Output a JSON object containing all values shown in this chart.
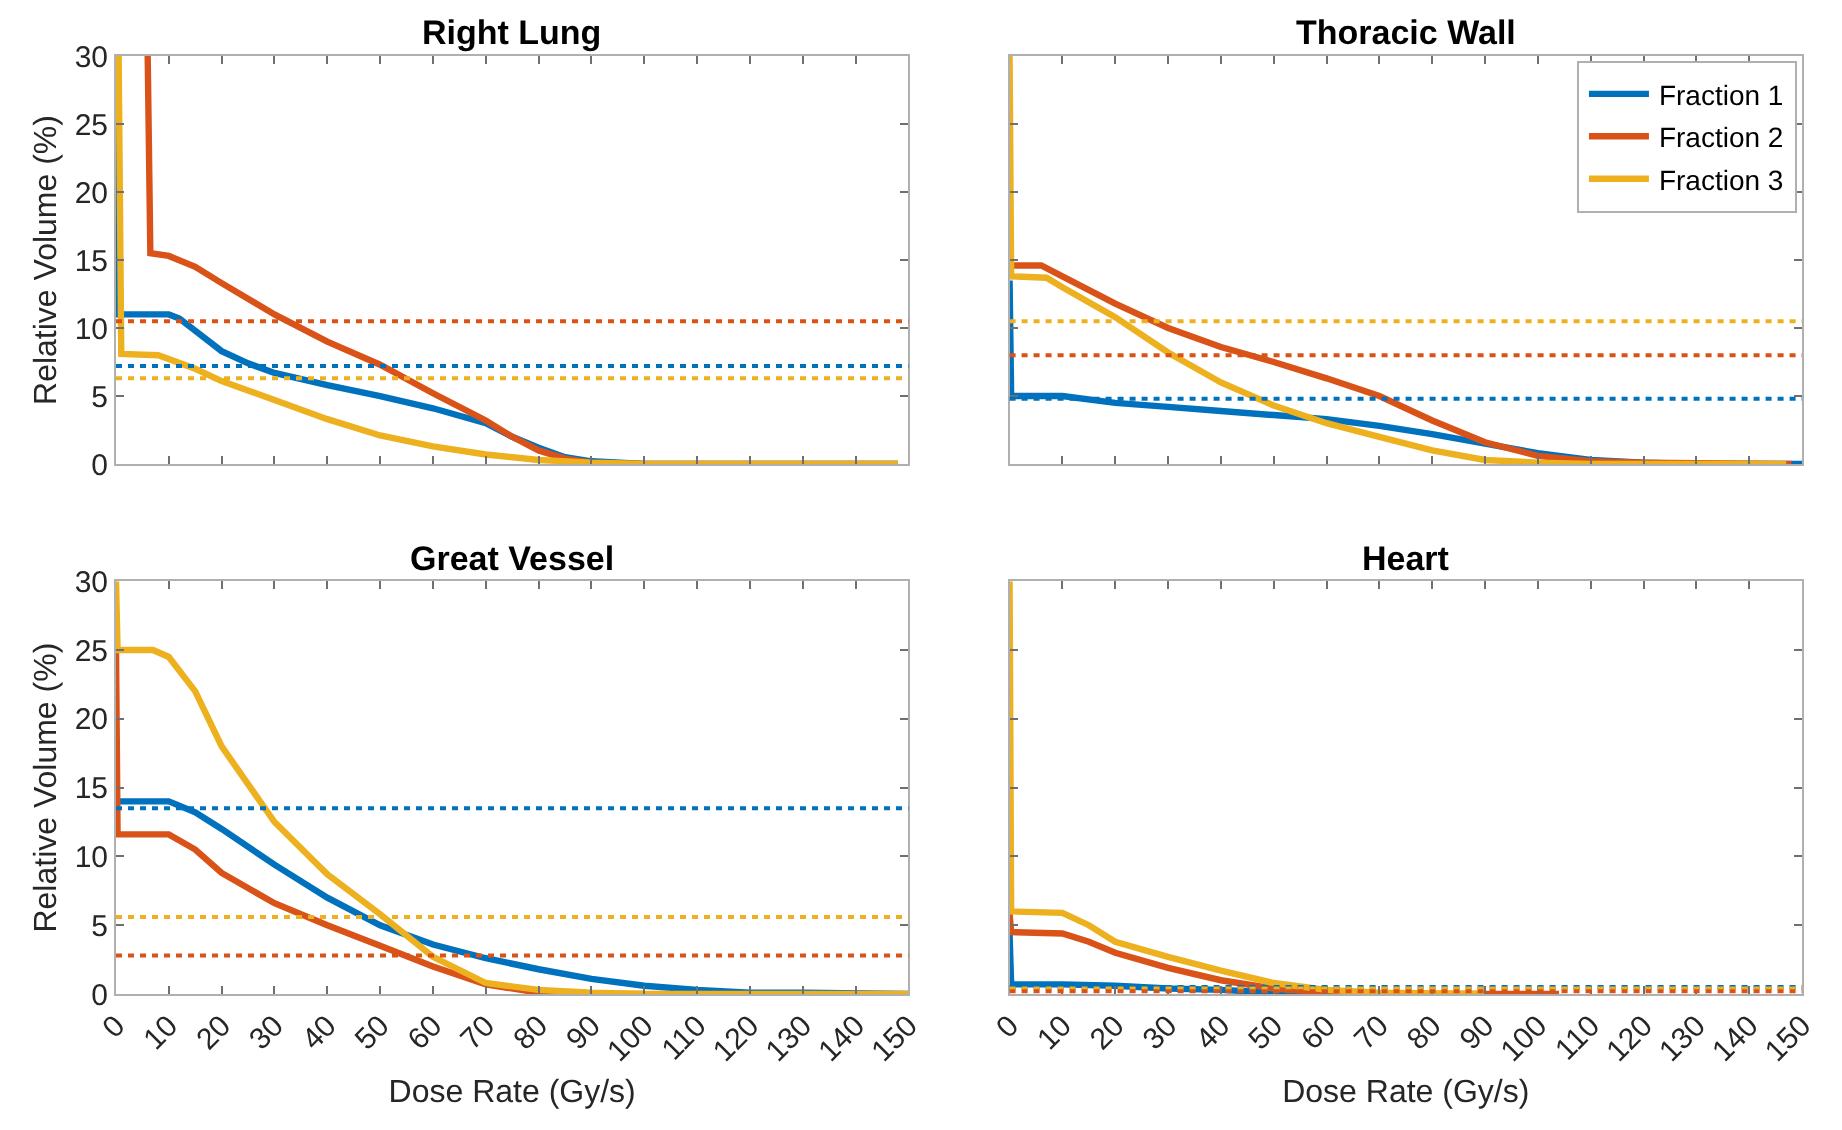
{
  "chart_data": [
    {
      "type": "line",
      "title": "Right Lung",
      "ylabel": "Relative Volume (%)",
      "xlim": [
        0,
        150
      ],
      "ylim": [
        0,
        30
      ],
      "xticks": [
        0,
        10,
        20,
        30,
        40,
        50,
        60,
        70,
        80,
        90,
        100,
        110,
        120,
        130,
        140,
        150
      ],
      "yticks": [
        0,
        5,
        10,
        15,
        20,
        25,
        30
      ],
      "tick_labels": "y",
      "legend": false,
      "line_style": "solid",
      "marker": "none",
      "series": [
        {
          "color": "#0072bd",
          "x": [
            0,
            0.5,
            10,
            12,
            15,
            20,
            25,
            30,
            40,
            50,
            60,
            70,
            75,
            80,
            85,
            90,
            100,
            148
          ],
          "values": [
            30,
            11,
            11,
            10.7,
            9.8,
            8.3,
            7.4,
            6.7,
            5.8,
            5.0,
            4.1,
            3.0,
            2.0,
            1.2,
            0.5,
            0.2,
            0,
            0
          ]
        },
        {
          "color": "#d95319",
          "x": [
            6,
            6.5,
            10,
            15,
            20,
            30,
            40,
            50,
            60,
            70,
            75,
            80,
            85,
            90,
            100,
            148
          ],
          "values": [
            30,
            15.5,
            15.3,
            14.5,
            13.3,
            11.0,
            9.0,
            7.3,
            5.2,
            3.2,
            2.0,
            1.0,
            0.4,
            0.1,
            0,
            0
          ]
        },
        {
          "color": "#edb120",
          "x": [
            0.5,
            1,
            8,
            15,
            20,
            30,
            40,
            50,
            60,
            70,
            80,
            90,
            100,
            148
          ],
          "values": [
            30,
            8.1,
            8.0,
            7.0,
            6.1,
            4.7,
            3.3,
            2.1,
            1.3,
            0.7,
            0.3,
            0.1,
            0,
            0
          ]
        }
      ],
      "ref_lines": [
        {
          "axis": "y",
          "value": 10.5,
          "color": "#d95319",
          "line_style": "dotted"
        },
        {
          "axis": "y",
          "value": 7.2,
          "color": "#0072bd",
          "line_style": "dotted"
        },
        {
          "axis": "y",
          "value": 6.3,
          "color": "#edb120",
          "line_style": "dotted"
        }
      ]
    },
    {
      "type": "line",
      "title": "Thoracic Wall",
      "xlim": [
        0,
        150
      ],
      "ylim": [
        0,
        30
      ],
      "xticks": [
        0,
        10,
        20,
        30,
        40,
        50,
        60,
        70,
        80,
        90,
        100,
        110,
        120,
        130,
        140,
        150
      ],
      "yticks": [
        0,
        5,
        10,
        15,
        20,
        25,
        30
      ],
      "tick_labels": false,
      "legend": "top right",
      "line_style": "solid",
      "marker": "none",
      "series": [
        {
          "name": "Fraction 1",
          "color": "#0072bd",
          "x": [
            0,
            0.3,
            10,
            20,
            30,
            40,
            50,
            60,
            70,
            80,
            90,
            100,
            110,
            120,
            130,
            140,
            150
          ],
          "values": [
            13.5,
            5.0,
            5.0,
            4.5,
            4.2,
            3.9,
            3.6,
            3.3,
            2.8,
            2.2,
            1.5,
            0.8,
            0.3,
            0.1,
            0,
            0,
            0
          ]
        },
        {
          "name": "Fraction 2",
          "color": "#d95319",
          "x": [
            0,
            6,
            10,
            20,
            30,
            40,
            50,
            60,
            70,
            80,
            90,
            100,
            110,
            120,
            148
          ],
          "values": [
            14.6,
            14.6,
            13.8,
            11.8,
            10.0,
            8.6,
            7.5,
            6.3,
            5.0,
            3.2,
            1.6,
            0.6,
            0.2,
            0.1,
            0
          ]
        },
        {
          "name": "Fraction 3",
          "color": "#edb120",
          "x": [
            0,
            0.3,
            7,
            10,
            20,
            30,
            40,
            50,
            60,
            70,
            80,
            90,
            100,
            110,
            147
          ],
          "values": [
            30,
            13.8,
            13.7,
            13.0,
            10.8,
            8.2,
            6.0,
            4.3,
            3.0,
            2.0,
            1.0,
            0.3,
            0.1,
            0,
            0
          ]
        }
      ],
      "ref_lines": [
        {
          "axis": "y",
          "value": 10.5,
          "color": "#edb120",
          "line_style": "dotted"
        },
        {
          "axis": "y",
          "value": 8.0,
          "color": "#d95319",
          "line_style": "dotted"
        },
        {
          "axis": "y",
          "value": 4.8,
          "color": "#0072bd",
          "line_style": "dotted"
        }
      ]
    },
    {
      "type": "line",
      "title": "Great Vessel",
      "xlabel": "Dose Rate (Gy/s)",
      "ylabel": "Relative Volume (%)",
      "xlim": [
        0,
        150
      ],
      "ylim": [
        0,
        30
      ],
      "xticks": [
        0,
        10,
        20,
        30,
        40,
        50,
        60,
        70,
        80,
        90,
        100,
        110,
        120,
        130,
        140,
        150
      ],
      "yticks": [
        0,
        5,
        10,
        15,
        20,
        25,
        30
      ],
      "legend": false,
      "line_style": "solid",
      "marker": "none",
      "series": [
        {
          "color": "#0072bd",
          "x": [
            0,
            10,
            15,
            20,
            30,
            40,
            50,
            60,
            70,
            80,
            90,
            100,
            110,
            120,
            130,
            150
          ],
          "values": [
            14,
            14,
            13.2,
            12.0,
            9.4,
            7.0,
            5.0,
            3.6,
            2.6,
            1.8,
            1.1,
            0.6,
            0.3,
            0.1,
            0.1,
            0
          ]
        },
        {
          "color": "#d95319",
          "x": [
            0,
            0.3,
            10,
            15,
            20,
            30,
            40,
            50,
            60,
            70,
            80,
            90,
            100
          ],
          "values": [
            25,
            11.6,
            11.6,
            10.5,
            8.8,
            6.6,
            5.0,
            3.5,
            2.0,
            0.7,
            0.1,
            0,
            0
          ]
        },
        {
          "color": "#edb120",
          "x": [
            0,
            0.3,
            7,
            10,
            15,
            20,
            30,
            40,
            50,
            60,
            70,
            80,
            90,
            100,
            150
          ],
          "values": [
            30,
            25,
            25,
            24.5,
            22,
            18,
            12.5,
            8.7,
            5.8,
            2.7,
            0.8,
            0.3,
            0.1,
            0,
            0
          ]
        }
      ],
      "ref_lines": [
        {
          "axis": "y",
          "value": 13.5,
          "color": "#0072bd",
          "line_style": "dotted"
        },
        {
          "axis": "y",
          "value": 5.6,
          "color": "#edb120",
          "line_style": "dotted"
        },
        {
          "axis": "y",
          "value": 2.8,
          "color": "#d95319",
          "line_style": "dotted"
        }
      ]
    },
    {
      "type": "line",
      "title": "Heart",
      "xlabel": "Dose Rate (Gy/s)",
      "xlim": [
        0,
        150
      ],
      "ylim": [
        0,
        30
      ],
      "xticks": [
        0,
        10,
        20,
        30,
        40,
        50,
        60,
        70,
        80,
        90,
        100,
        110,
        120,
        130,
        140,
        150
      ],
      "yticks": [
        0,
        5,
        10,
        15,
        20,
        25,
        30
      ],
      "tick_labels": "x",
      "legend": false,
      "line_style": "solid",
      "marker": "none",
      "series": [
        {
          "color": "#0072bd",
          "x": [
            0,
            0.3,
            10,
            20,
            30,
            40,
            50,
            60
          ],
          "values": [
            4.3,
            0.7,
            0.7,
            0.6,
            0.4,
            0.3,
            0.1,
            0.1
          ]
        },
        {
          "color": "#d95319",
          "x": [
            0,
            0.3,
            10,
            15,
            20,
            30,
            40,
            50,
            60,
            70,
            104
          ],
          "values": [
            5.8,
            4.5,
            4.4,
            3.8,
            3.0,
            1.9,
            1.0,
            0.4,
            0.1,
            0,
            0
          ]
        },
        {
          "color": "#edb120",
          "x": [
            0,
            0.3,
            10,
            15,
            20,
            30,
            40,
            50,
            60,
            70,
            90
          ],
          "values": [
            30,
            6.0,
            5.9,
            5.0,
            3.8,
            2.7,
            1.7,
            0.8,
            0.3,
            0.1,
            0
          ]
        }
      ],
      "ref_lines": [
        {
          "axis": "y",
          "value": 0.5,
          "color": "#0072bd",
          "line_style": "dotted"
        },
        {
          "axis": "y",
          "value": 0.4,
          "color": "#edb120",
          "line_style": "dotted"
        },
        {
          "axis": "y",
          "value": 0.2,
          "color": "#d95319",
          "line_style": "dotted"
        }
      ]
    }
  ]
}
